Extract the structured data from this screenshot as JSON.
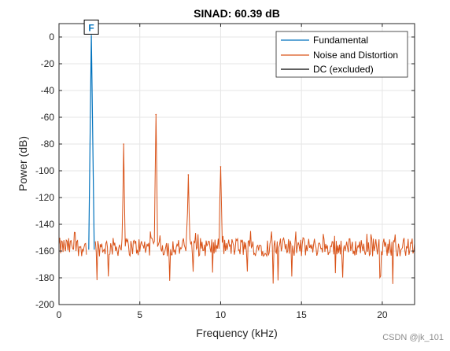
{
  "chart_data": {
    "type": "line",
    "title": "SINAD:  60.39 dB",
    "xlabel": "Frequency (kHz)",
    "ylabel": "Power (dB)",
    "xlim": [
      0,
      22
    ],
    "ylim": [
      -200,
      10
    ],
    "xticks": [
      0,
      5,
      10,
      15,
      20
    ],
    "yticks": [
      0,
      -20,
      -40,
      -60,
      -80,
      -100,
      -120,
      -140,
      -160,
      -180,
      -200
    ],
    "grid": true,
    "legend_position": "top-right",
    "marker_label": "F",
    "series": [
      {
        "name": "Fundamental",
        "color": "#0072BD",
        "x": [
          1.84,
          2.0,
          2.18
        ],
        "y": [
          -159,
          1.5,
          -159
        ]
      },
      {
        "name": "Noise and Distortion",
        "color": "#D95319",
        "harmonics": [
          {
            "x": 4.0,
            "y": -80
          },
          {
            "x": 6.0,
            "y": -58
          },
          {
            "x": 8.0,
            "y": -103
          },
          {
            "x": 10.0,
            "y": -97
          }
        ],
        "noise_floor": -157,
        "noise_min": -185,
        "noise_max": -145,
        "x": [
          0,
          22
        ]
      },
      {
        "name": "DC (excluded)",
        "color": "#000000",
        "x": [],
        "y": []
      }
    ]
  },
  "watermark": "CSDN @jk_101"
}
